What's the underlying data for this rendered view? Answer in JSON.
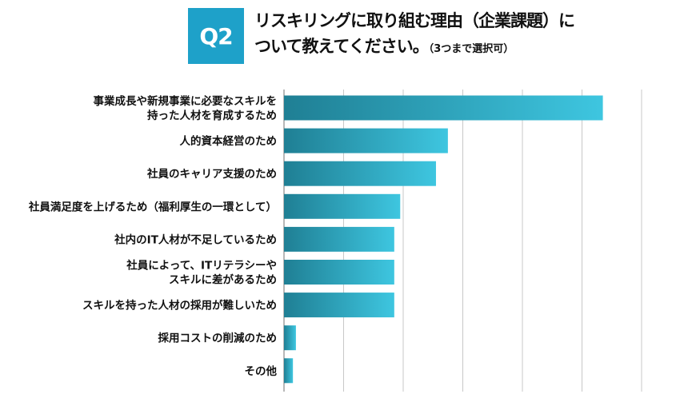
{
  "header": {
    "badge": "Q2",
    "title_line1": "リスキリングに取り組む理由（企業課題）に",
    "title_line2": "ついて教えてください。",
    "note": "（3つまで選択可）"
  },
  "colors": {
    "accent": "#1ea1c9",
    "bar_start": "#1f7f94",
    "bar_end": "#3ec6e0",
    "grid": "#c8c8c8"
  },
  "chart_data": {
    "type": "bar",
    "orientation": "horizontal",
    "title": "",
    "xlabel": "",
    "ylabel": "",
    "grid": true,
    "xlim": [
      0,
      60
    ],
    "categories": [
      [
        "事業成長や新規事業に必要なスキルを",
        "持った人材を育成するため"
      ],
      [
        "人的資本経営のため"
      ],
      [
        "社員のキャリア支援のため"
      ],
      [
        "社員満足度を上げるため（福利厚生の一環として）"
      ],
      [
        "社内のIT人材が不足しているため"
      ],
      [
        "社員によって、ITリテラシーや",
        "スキルに差があるため"
      ],
      [
        "スキルを持った人材の採用が難しいため"
      ],
      [
        "採用コストの削減のため"
      ],
      [
        "その他"
      ]
    ],
    "values": [
      53.5,
      27.5,
      25.5,
      19.5,
      18.5,
      18.5,
      18.5,
      2.0,
      1.5
    ]
  }
}
